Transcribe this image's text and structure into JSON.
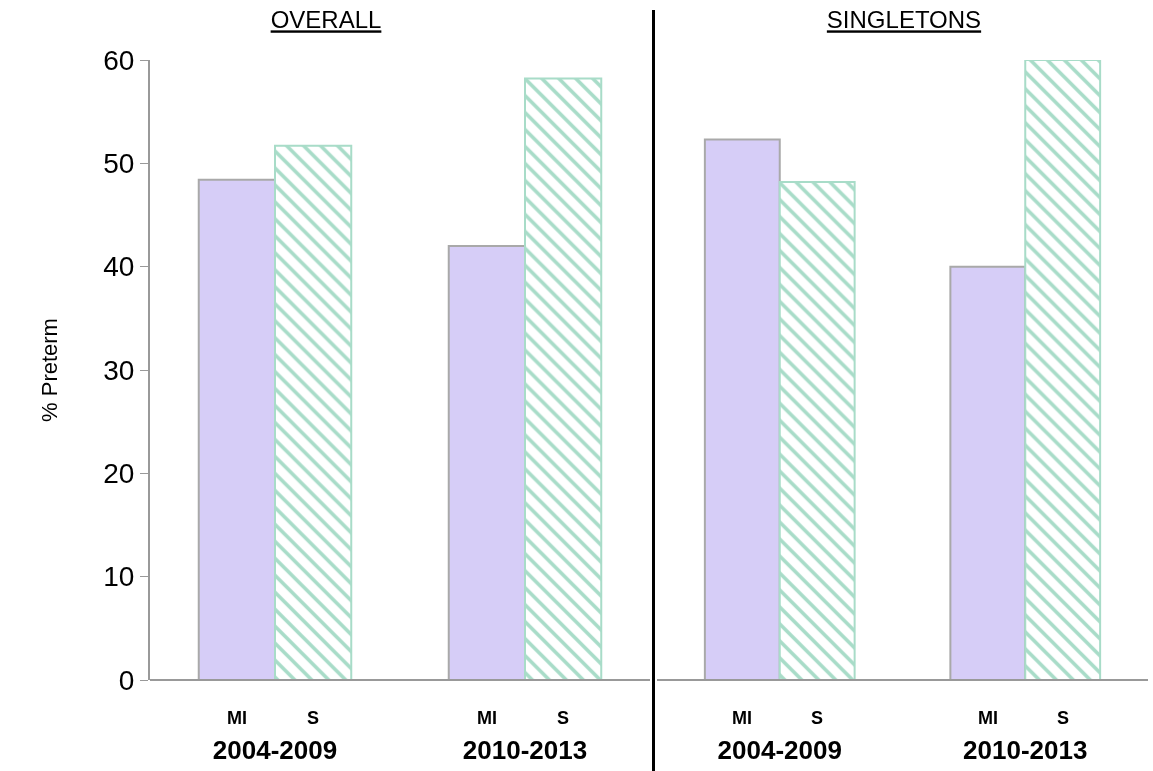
{
  "chart_data": [
    {
      "type": "bar",
      "title": "OVERALL",
      "ylabel": "% Preterm",
      "categories": [
        "2004-2009",
        "2010-2013"
      ],
      "series": [
        {
          "name": "MI",
          "color": "#d6cdf7",
          "values": [
            48.4,
            42.0
          ]
        },
        {
          "name": "S",
          "color": "#a8dcc8",
          "values": [
            51.7,
            58.2
          ]
        }
      ],
      "ylim": [
        0,
        60
      ],
      "yticks": [
        0,
        10,
        20,
        30,
        40,
        50,
        60
      ],
      "grid": false
    },
    {
      "type": "bar",
      "title": "SINGLETONS",
      "categories": [
        "2004-2009",
        "2010-2013"
      ],
      "series": [
        {
          "name": "MI",
          "color": "#d6cdf7",
          "values": [
            52.3,
            40.0
          ]
        },
        {
          "name": "S",
          "color": "#a8dcc8",
          "values": [
            48.2,
            60.0
          ]
        }
      ],
      "ylim": [
        0,
        60
      ],
      "yticks": [
        0,
        10,
        20,
        30,
        40,
        50,
        60
      ],
      "grid": false,
      "tick_labels": "x"
    }
  ]
}
